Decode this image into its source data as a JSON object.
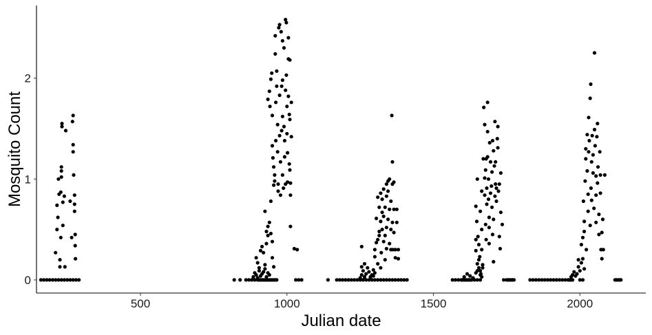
{
  "chart_data": {
    "type": "scatter",
    "title": "",
    "xlabel": "Julian date",
    "ylabel": "Mosquito Count",
    "xlim": [
      145,
      2225
    ],
    "ylim": [
      -0.13,
      2.72
    ],
    "xticks": [
      500,
      1000,
      1500,
      2000
    ],
    "xtick_labels": [
      "500",
      "1000",
      "1500",
      "2000"
    ],
    "yticks": [
      0,
      1,
      2
    ],
    "ytick_labels": [
      "0",
      "1",
      "2"
    ],
    "grid": false,
    "legend": "none",
    "point_color": "#000000",
    "points": [
      [
        160,
        0
      ],
      [
        170,
        0
      ],
      [
        180,
        0
      ],
      [
        190,
        0
      ],
      [
        200,
        0
      ],
      [
        210,
        0
      ],
      [
        220,
        0
      ],
      [
        230,
        0
      ],
      [
        240,
        0
      ],
      [
        250,
        0
      ],
      [
        260,
        0
      ],
      [
        270,
        0
      ],
      [
        280,
        0
      ],
      [
        290,
        0
      ],
      [
        210,
        0.27
      ],
      [
        215,
        0.5
      ],
      [
        215,
        0.74
      ],
      [
        218,
        0.62
      ],
      [
        220,
        1.0
      ],
      [
        222,
        0.85
      ],
      [
        225,
        0.13
      ],
      [
        225,
        0.2
      ],
      [
        228,
        0.42
      ],
      [
        228,
        0.87
      ],
      [
        230,
        1.02
      ],
      [
        230,
        1.08
      ],
      [
        230,
        1.12
      ],
      [
        232,
        1.52
      ],
      [
        232,
        1.55
      ],
      [
        235,
        0.77
      ],
      [
        235,
        0.54
      ],
      [
        240,
        0.83
      ],
      [
        242,
        0.13
      ],
      [
        245,
        1.48
      ],
      [
        260,
        0.78
      ],
      [
        265,
        0.42
      ],
      [
        268,
        1.57
      ],
      [
        270,
        1.63
      ],
      [
        270,
        1.34
      ],
      [
        272,
        1.04
      ],
      [
        275,
        0.84
      ],
      [
        275,
        0.75
      ],
      [
        275,
        0.68
      ],
      [
        277,
        0.45
      ],
      [
        277,
        0.34
      ],
      [
        278,
        0.21
      ],
      [
        270,
        1.27
      ],
      [
        820,
        0
      ],
      [
        840,
        0
      ],
      [
        860,
        0
      ],
      [
        870,
        0
      ],
      [
        880,
        0
      ],
      [
        890,
        0
      ],
      [
        900,
        0
      ],
      [
        905,
        0
      ],
      [
        910,
        0
      ],
      [
        915,
        0
      ],
      [
        920,
        0
      ],
      [
        925,
        0
      ],
      [
        930,
        0
      ],
      [
        935,
        0
      ],
      [
        940,
        0
      ],
      [
        945,
        0
      ],
      [
        950,
        0
      ],
      [
        955,
        0
      ],
      [
        960,
        0
      ],
      [
        965,
        0
      ],
      [
        885,
        0.03
      ],
      [
        890,
        0.07
      ],
      [
        895,
        0.05
      ],
      [
        900,
        0.02
      ],
      [
        905,
        0.09
      ],
      [
        910,
        0.04
      ],
      [
        915,
        0.06
      ],
      [
        920,
        0.08
      ],
      [
        925,
        0.11
      ],
      [
        930,
        0.03
      ],
      [
        935,
        0.07
      ],
      [
        940,
        0.05
      ],
      [
        895,
        0.22
      ],
      [
        900,
        0.17
      ],
      [
        905,
        0.12
      ],
      [
        910,
        0.29
      ],
      [
        915,
        0.33
      ],
      [
        920,
        0.27
      ],
      [
        925,
        0.15
      ],
      [
        930,
        0.36
      ],
      [
        925,
        0.68
      ],
      [
        930,
        0.48
      ],
      [
        935,
        0.44
      ],
      [
        935,
        0.53
      ],
      [
        940,
        0.57
      ],
      [
        945,
        0.46
      ],
      [
        950,
        0.38
      ],
      [
        950,
        0.22
      ],
      [
        955,
        0.13
      ],
      [
        945,
        0.78
      ],
      [
        935,
        1.79
      ],
      [
        940,
        1.87
      ],
      [
        942,
        1.72
      ],
      [
        945,
        1.99
      ],
      [
        948,
        2.05
      ],
      [
        950,
        1.63
      ],
      [
        950,
        1.33
      ],
      [
        952,
        1.21
      ],
      [
        955,
        1.12
      ],
      [
        955,
        0.94
      ],
      [
        958,
        0.98
      ],
      [
        958,
        1.04
      ],
      [
        960,
        2.42
      ],
      [
        960,
        2.24
      ],
      [
        962,
        1.76
      ],
      [
        962,
        1.38
      ],
      [
        965,
        2.07
      ],
      [
        965,
        1.92
      ],
      [
        968,
        1.54
      ],
      [
        968,
        1.27
      ],
      [
        970,
        0.88
      ],
      [
        970,
        0.95
      ],
      [
        972,
        2.5
      ],
      [
        975,
        2.53
      ],
      [
        975,
        1.83
      ],
      [
        975,
        1.43
      ],
      [
        978,
        1.17
      ],
      [
        978,
        0.84
      ],
      [
        980,
        2.46
      ],
      [
        982,
        1.92
      ],
      [
        982,
        1.48
      ],
      [
        985,
        2.37
      ],
      [
        985,
        1.98
      ],
      [
        985,
        1.62
      ],
      [
        985,
        1.04
      ],
      [
        988,
        0.91
      ],
      [
        990,
        2.3
      ],
      [
        990,
        1.52
      ],
      [
        992,
        1.38
      ],
      [
        992,
        1.22
      ],
      [
        995,
        2.58
      ],
      [
        995,
        1.88
      ],
      [
        995,
        0.95
      ],
      [
        998,
        2.55
      ],
      [
        998,
        2.03
      ],
      [
        1000,
        1.72
      ],
      [
        1000,
        1.45
      ],
      [
        1002,
        1.26
      ],
      [
        1002,
        0.97
      ],
      [
        1005,
        2.4
      ],
      [
        1005,
        2.19
      ],
      [
        1005,
        1.82
      ],
      [
        1008,
        1.64
      ],
      [
        1008,
        1.15
      ],
      [
        1010,
        2.18
      ],
      [
        1010,
        1.59
      ],
      [
        1010,
        1.09
      ],
      [
        1012,
        0.96
      ],
      [
        1012,
        0.84
      ],
      [
        1015,
        1.42
      ],
      [
        1015,
        1.76
      ],
      [
        1012,
        0.53
      ],
      [
        1025,
        0.31
      ],
      [
        1035,
        0.3
      ],
      [
        1030,
        0
      ],
      [
        1040,
        0
      ],
      [
        1050,
        0
      ],
      [
        1140,
        0
      ],
      [
        1170,
        0
      ],
      [
        1180,
        0
      ],
      [
        1190,
        0
      ],
      [
        1200,
        0
      ],
      [
        1210,
        0
      ],
      [
        1220,
        0
      ],
      [
        1230,
        0
      ],
      [
        1240,
        0
      ],
      [
        1250,
        0
      ],
      [
        1260,
        0
      ],
      [
        1270,
        0
      ],
      [
        1280,
        0
      ],
      [
        1290,
        0
      ],
      [
        1300,
        0
      ],
      [
        1310,
        0
      ],
      [
        1320,
        0
      ],
      [
        1330,
        0
      ],
      [
        1340,
        0
      ],
      [
        1350,
        0
      ],
      [
        1360,
        0
      ],
      [
        1370,
        0
      ],
      [
        1380,
        0
      ],
      [
        1390,
        0
      ],
      [
        1400,
        0
      ],
      [
        1410,
        0
      ],
      [
        1250,
        0.02
      ],
      [
        1255,
        0.05
      ],
      [
        1260,
        0.09
      ],
      [
        1265,
        0.03
      ],
      [
        1270,
        0.06
      ],
      [
        1275,
        0.12
      ],
      [
        1280,
        0.08
      ],
      [
        1285,
        0.03
      ],
      [
        1290,
        0.05
      ],
      [
        1295,
        0.04
      ],
      [
        1300,
        0.07
      ],
      [
        1255,
        0.13
      ],
      [
        1265,
        0.16
      ],
      [
        1255,
        0.33
      ],
      [
        1295,
        0.1
      ],
      [
        1300,
        0.23
      ],
      [
        1300,
        0.3
      ],
      [
        1305,
        0.37
      ],
      [
        1305,
        0.61
      ],
      [
        1310,
        0.16
      ],
      [
        1310,
        0.4
      ],
      [
        1310,
        0.82
      ],
      [
        1315,
        0.44
      ],
      [
        1315,
        0.48
      ],
      [
        1315,
        0.72
      ],
      [
        1320,
        0.12
      ],
      [
        1320,
        0.58
      ],
      [
        1320,
        0.86
      ],
      [
        1322,
        0.27
      ],
      [
        1325,
        0.5
      ],
      [
        1325,
        0.67
      ],
      [
        1325,
        0.8
      ],
      [
        1330,
        0.38
      ],
      [
        1330,
        0.63
      ],
      [
        1330,
        0.9
      ],
      [
        1335,
        0.2
      ],
      [
        1335,
        0.44
      ],
      [
        1335,
        0.72
      ],
      [
        1340,
        0.31
      ],
      [
        1340,
        0.52
      ],
      [
        1340,
        0.83
      ],
      [
        1340,
        0.95
      ],
      [
        1345,
        0.6
      ],
      [
        1345,
        0.88
      ],
      [
        1345,
        0.98
      ],
      [
        1350,
        0.36
      ],
      [
        1350,
        0.7
      ],
      [
        1350,
        1.0
      ],
      [
        1355,
        0.3
      ],
      [
        1355,
        0.5
      ],
      [
        1355,
        0.78
      ],
      [
        1358,
        1.63
      ],
      [
        1360,
        0.95
      ],
      [
        1360,
        1.17
      ],
      [
        1360,
        0.57
      ],
      [
        1362,
        0.3
      ],
      [
        1365,
        0.47
      ],
      [
        1365,
        0.7
      ],
      [
        1365,
        0.97
      ],
      [
        1370,
        0.22
      ],
      [
        1370,
        0.3
      ],
      [
        1375,
        0.57
      ],
      [
        1375,
        0.7
      ],
      [
        1380,
        0.3
      ],
      [
        1380,
        0.21
      ],
      [
        1565,
        0
      ],
      [
        1575,
        0
      ],
      [
        1585,
        0
      ],
      [
        1595,
        0
      ],
      [
        1600,
        0
      ],
      [
        1605,
        0
      ],
      [
        1610,
        0
      ],
      [
        1615,
        0
      ],
      [
        1620,
        0
      ],
      [
        1625,
        0
      ],
      [
        1630,
        0
      ],
      [
        1640,
        0
      ],
      [
        1650,
        0
      ],
      [
        1660,
        0
      ],
      [
        1740,
        0
      ],
      [
        1750,
        0
      ],
      [
        1755,
        0
      ],
      [
        1760,
        0
      ],
      [
        1765,
        0
      ],
      [
        1770,
        0
      ],
      [
        1775,
        0
      ],
      [
        1605,
        0.03
      ],
      [
        1615,
        0.06
      ],
      [
        1625,
        0.04
      ],
      [
        1635,
        0.02
      ],
      [
        1645,
        0.07
      ],
      [
        1650,
        0.09
      ],
      [
        1655,
        0.12
      ],
      [
        1660,
        0.05
      ],
      [
        1665,
        0.03
      ],
      [
        1645,
        0.29
      ],
      [
        1645,
        0.4
      ],
      [
        1645,
        0.73
      ],
      [
        1648,
        0.58
      ],
      [
        1650,
        0.16
      ],
      [
        1650,
        1.0
      ],
      [
        1652,
        0.43
      ],
      [
        1655,
        0.2
      ],
      [
        1655,
        0.35
      ],
      [
        1658,
        0.23
      ],
      [
        1660,
        0.68
      ],
      [
        1660,
        0.09
      ],
      [
        1662,
        0.06
      ],
      [
        1665,
        0.3
      ],
      [
        1665,
        0.5
      ],
      [
        1665,
        0.88
      ],
      [
        1668,
        0.12
      ],
      [
        1668,
        0.15
      ],
      [
        1670,
        1.2
      ],
      [
        1672,
        1.71
      ],
      [
        1675,
        0.84
      ],
      [
        1675,
        1.01
      ],
      [
        1675,
        1.54
      ],
      [
        1678,
        0.55
      ],
      [
        1678,
        1.09
      ],
      [
        1680,
        0.4
      ],
      [
        1680,
        1.2
      ],
      [
        1682,
        0.75
      ],
      [
        1682,
        0.91
      ],
      [
        1685,
        1.76
      ],
      [
        1685,
        1.47
      ],
      [
        1685,
        1.22
      ],
      [
        1688,
        0.8
      ],
      [
        1688,
        1.0
      ],
      [
        1690,
        0.52
      ],
      [
        1690,
        0.62
      ],
      [
        1690,
        0.36
      ],
      [
        1692,
        1.36
      ],
      [
        1695,
        0.86
      ],
      [
        1695,
        1.17
      ],
      [
        1698,
        0.93
      ],
      [
        1700,
        0.72
      ],
      [
        1700,
        1.07
      ],
      [
        1702,
        0.45
      ],
      [
        1702,
        1.38
      ],
      [
        1705,
        0.6
      ],
      [
        1705,
        1.28
      ],
      [
        1705,
        0.18
      ],
      [
        1708,
        1.13
      ],
      [
        1710,
        0.83
      ],
      [
        1710,
        1.57
      ],
      [
        1712,
        0.95
      ],
      [
        1712,
        1.17
      ],
      [
        1715,
        0.91
      ],
      [
        1715,
        0.78
      ],
      [
        1718,
        1.4
      ],
      [
        1720,
        1.31
      ],
      [
        1720,
        1.52
      ],
      [
        1722,
        0.88
      ],
      [
        1725,
        0.95
      ],
      [
        1725,
        0.43
      ],
      [
        1728,
        0.31
      ],
      [
        1730,
        1.06
      ],
      [
        1730,
        0.67
      ],
      [
        1735,
        0.55
      ],
      [
        1830,
        0
      ],
      [
        1840,
        0
      ],
      [
        1850,
        0
      ],
      [
        1860,
        0
      ],
      [
        1870,
        0
      ],
      [
        1880,
        0
      ],
      [
        1890,
        0
      ],
      [
        1900,
        0
      ],
      [
        1910,
        0
      ],
      [
        1920,
        0
      ],
      [
        1930,
        0
      ],
      [
        1940,
        0
      ],
      [
        1950,
        0
      ],
      [
        1960,
        0
      ],
      [
        1965,
        0
      ],
      [
        1970,
        0
      ],
      [
        1975,
        0
      ],
      [
        2000,
        0
      ],
      [
        2010,
        0
      ],
      [
        2120,
        0
      ],
      [
        2125,
        0
      ],
      [
        2130,
        0
      ],
      [
        2135,
        0
      ],
      [
        2140,
        0
      ],
      [
        1970,
        0.03
      ],
      [
        1975,
        0.05
      ],
      [
        1980,
        0.08
      ],
      [
        1985,
        0.04
      ],
      [
        1990,
        0.06
      ],
      [
        1995,
        0.13
      ],
      [
        2000,
        0.09
      ],
      [
        2005,
        0.17
      ],
      [
        2010,
        0.21
      ],
      [
        2015,
        0.11
      ],
      [
        1995,
        0.2
      ],
      [
        2005,
        0.35
      ],
      [
        2010,
        0.42
      ],
      [
        2012,
        0.78
      ],
      [
        2015,
        0.48
      ],
      [
        2015,
        0.58
      ],
      [
        2018,
        0.98
      ],
      [
        2020,
        1.2
      ],
      [
        2020,
        1.3
      ],
      [
        2022,
        0.3
      ],
      [
        2025,
        1.08
      ],
      [
        2025,
        1.44
      ],
      [
        2028,
        0.68
      ],
      [
        2028,
        0.85
      ],
      [
        2030,
        1.61
      ],
      [
        2030,
        1.27
      ],
      [
        2032,
        1.38
      ],
      [
        2035,
        1.8
      ],
      [
        2035,
        0.54
      ],
      [
        2037,
        1.94
      ],
      [
        2038,
        0.91
      ],
      [
        2040,
        1.17
      ],
      [
        2040,
        0.79
      ],
      [
        2042,
        1.43
      ],
      [
        2045,
        1.06
      ],
      [
        2045,
        1.24
      ],
      [
        2048,
        0.71
      ],
      [
        2050,
        2.25
      ],
      [
        2050,
        1.49
      ],
      [
        2052,
        1.33
      ],
      [
        2055,
        0.84
      ],
      [
        2055,
        1.03
      ],
      [
        2055,
        0.57
      ],
      [
        2058,
        1.42
      ],
      [
        2060,
        0.96
      ],
      [
        2060,
        1.55
      ],
      [
        2062,
        1.12
      ],
      [
        2065,
        0.45
      ],
      [
        2065,
        0.65
      ],
      [
        2068,
        1.27
      ],
      [
        2070,
        0.86
      ],
      [
        2070,
        1.04
      ],
      [
        2072,
        0.3
      ],
      [
        2075,
        0.47
      ],
      [
        2075,
        0.21
      ],
      [
        2078,
        0.6
      ],
      [
        2080,
        0.3
      ],
      [
        2085,
        1.04
      ]
    ]
  }
}
